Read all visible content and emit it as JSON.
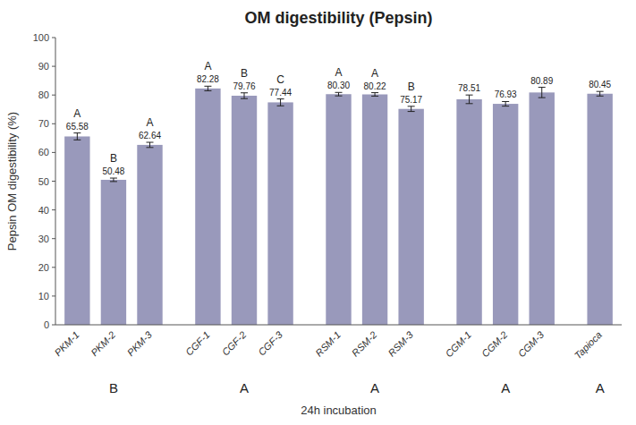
{
  "chart_data": {
    "type": "bar",
    "title": "OM digestibility (Pepsin)",
    "ylabel": "Pepsin OM digestibility (%)",
    "xlabel": "24h incubation",
    "categories": [
      "PKM-1",
      "PKM-2",
      "PKM-3",
      "CGF-1",
      "CGF-2",
      "CGF-3",
      "RSM-1",
      "RSM-2",
      "RSM-3",
      "CGM-1",
      "CGM-2",
      "CGM-3",
      "Tapioca"
    ],
    "values": [
      65.58,
      50.48,
      62.64,
      82.28,
      79.76,
      77.44,
      80.3,
      80.22,
      75.17,
      78.51,
      76.93,
      80.89,
      80.45
    ],
    "value_labels": [
      "65.58",
      "50.48",
      "62.64",
      "82.28",
      "79.76",
      "77.44",
      "80.30",
      "80.22",
      "75.17",
      "78.51",
      "76.93",
      "80.89",
      "80.45"
    ],
    "errors": [
      1.2,
      0.6,
      0.9,
      0.8,
      1.0,
      1.2,
      0.6,
      0.6,
      0.9,
      1.5,
      0.8,
      1.8,
      0.8
    ],
    "stat_labels": [
      "A",
      "B",
      "A",
      "A",
      "B",
      "C",
      "A",
      "A",
      "B",
      null,
      null,
      null,
      null
    ],
    "groups": [
      {
        "label": "B",
        "first": "PKM-1",
        "last": "PKM-3"
      },
      {
        "label": "A",
        "first": "CGF-1",
        "last": "CGF-3"
      },
      {
        "label": "A",
        "first": "RSM-1",
        "last": "RSM-3"
      },
      {
        "label": "A",
        "first": "CGM-1",
        "last": "CGM-3"
      },
      {
        "label": "A",
        "first": "Tapioca",
        "last": "Tapioca"
      }
    ],
    "color": "#9999bb",
    "ylim": [
      0,
      100
    ],
    "yticks": [
      0,
      10,
      20,
      30,
      40,
      50,
      60,
      70,
      80,
      90,
      100
    ],
    "grid": false,
    "data_labels": true
  }
}
